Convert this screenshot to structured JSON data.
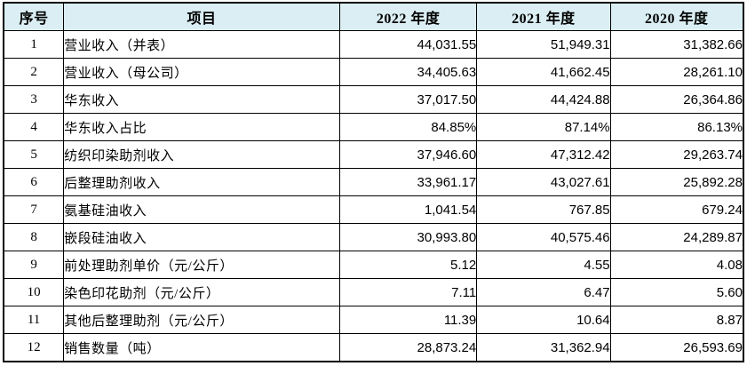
{
  "colors": {
    "header_bg": "#daeef3",
    "border": "#000000",
    "text": "#000000",
    "body_bg": "#ffffff"
  },
  "table": {
    "columns": [
      {
        "key": "index",
        "label": "序号"
      },
      {
        "key": "item",
        "label": "项目"
      },
      {
        "key": "y2022",
        "label": "2022 年度"
      },
      {
        "key": "y2021",
        "label": "2021 年度"
      },
      {
        "key": "y2020",
        "label": "2020 年度"
      }
    ],
    "rows": [
      {
        "index": "1",
        "item": "营业收入（并表）",
        "y2022": "44,031.55",
        "y2021": "51,949.31",
        "y2020": "31,382.66"
      },
      {
        "index": "2",
        "item": "营业收入（母公司）",
        "y2022": "34,405.63",
        "y2021": "41,662.45",
        "y2020": "28,261.10"
      },
      {
        "index": "3",
        "item": "华东收入",
        "y2022": "37,017.50",
        "y2021": "44,424.88",
        "y2020": "26,364.86"
      },
      {
        "index": "4",
        "item": "华东收入占比",
        "y2022": "84.85%",
        "y2021": "87.14%",
        "y2020": "86.13%"
      },
      {
        "index": "5",
        "item": "纺织印染助剂收入",
        "y2022": "37,946.60",
        "y2021": "47,312.42",
        "y2020": "29,263.74"
      },
      {
        "index": "6",
        "item": "后整理助剂收入",
        "y2022": "33,961.17",
        "y2021": "43,027.61",
        "y2020": "25,892.28"
      },
      {
        "index": "7",
        "item": "氨基硅油收入",
        "y2022": "1,041.54",
        "y2021": "767.85",
        "y2020": "679.24"
      },
      {
        "index": "8",
        "item": "嵌段硅油收入",
        "y2022": "30,993.80",
        "y2021": "40,575.46",
        "y2020": "24,289.87"
      },
      {
        "index": "9",
        "item": "前处理助剂单价（元/公斤）",
        "y2022": "5.12",
        "y2021": "4.55",
        "y2020": "4.08"
      },
      {
        "index": "10",
        "item": "染色印花助剂（元/公斤）",
        "y2022": "7.11",
        "y2021": "6.47",
        "y2020": "5.60"
      },
      {
        "index": "11",
        "item": "其他后整理助剂（元/公斤）",
        "y2022": "11.39",
        "y2021": "10.64",
        "y2020": "8.87"
      },
      {
        "index": "12",
        "item": "销售数量（吨）",
        "y2022": "28,873.24",
        "y2021": "31,362.94",
        "y2020": "26,593.69"
      }
    ]
  }
}
